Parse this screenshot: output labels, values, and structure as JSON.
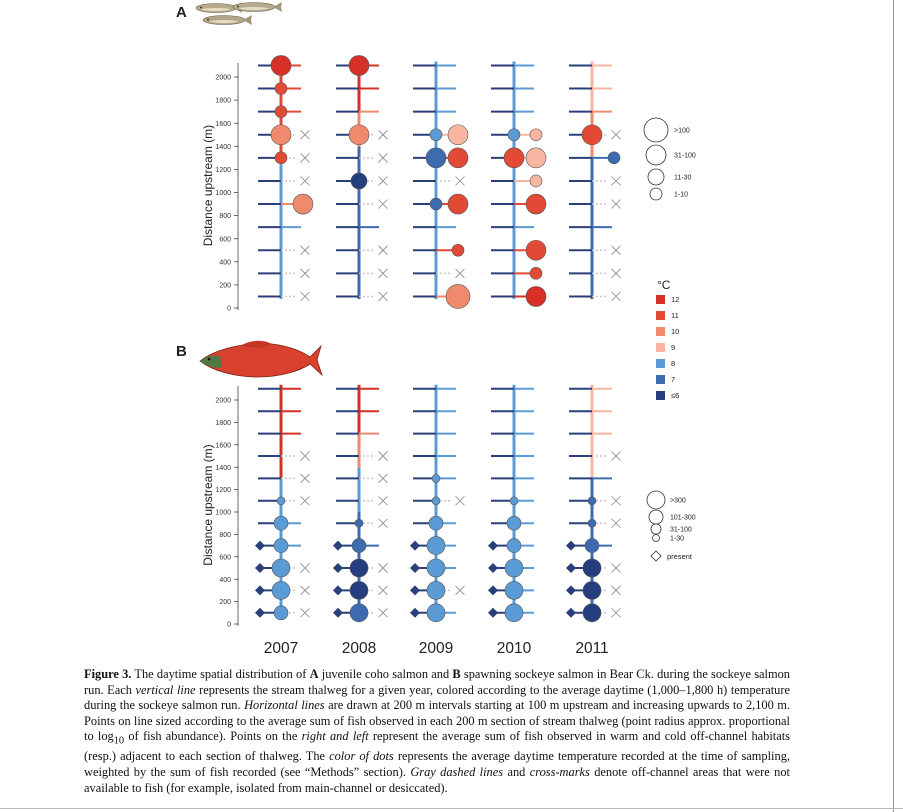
{
  "panels": {
    "a": {
      "label": "A",
      "ylabel": "Distance upstream (m)",
      "yticks": [
        "0",
        "200",
        "400",
        "600",
        "800",
        "1000",
        "1200",
        "1400",
        "1600",
        "1800",
        "2000"
      ]
    },
    "b": {
      "label": "B",
      "ylabel": "Distance upstream (m)",
      "yticks": [
        "0",
        "200",
        "400",
        "600",
        "800",
        "1000",
        "1200",
        "1400",
        "1600",
        "1800",
        "2000"
      ]
    }
  },
  "years": [
    "2007",
    "2008",
    "2009",
    "2010",
    "2011"
  ],
  "legend": {
    "size_a": [
      ">100",
      "31-100",
      "11-30",
      "1-10"
    ],
    "temp_title": "°C",
    "temp_labels": [
      "12",
      "11",
      "10",
      "9",
      "8",
      "7",
      "≤6"
    ],
    "temp_colors": [
      "#d73027",
      "#e24a35",
      "#f08a6d",
      "#f7b5a2",
      "#5b9bd5",
      "#3d6bb0",
      "#253e7e"
    ],
    "size_b": [
      ">300",
      "101-300",
      "31-100",
      "1-30"
    ],
    "present": "present"
  },
  "chart_data": [
    {
      "type": "scatter",
      "panel": "A",
      "ylabel": "Distance upstream (m)",
      "ylim": [
        0,
        2100
      ],
      "x": [
        "2007",
        "2008",
        "2009",
        "2010",
        "2011"
      ],
      "thalweg": [
        {
          "year": "2007",
          "segments": [
            {
              "from": 0,
              "to": 1300,
              "color": "#5b9bd5"
            },
            {
              "from": 1300,
              "to": 2100,
              "color": "#e24a35"
            }
          ]
        },
        {
          "year": "2008",
          "segments": [
            {
              "from": 0,
              "to": 1000,
              "color": "#3d6bb0"
            },
            {
              "from": 1000,
              "to": 1400,
              "color": "#3d6bb0"
            },
            {
              "from": 1400,
              "to": 1700,
              "color": "#f08a6d"
            },
            {
              "from": 1700,
              "to": 2100,
              "color": "#d73027"
            }
          ]
        },
        {
          "year": "2009",
          "segments": [
            {
              "from": 0,
              "to": 2100,
              "color": "#5b9bd5"
            }
          ]
        },
        {
          "year": "2010",
          "segments": [
            {
              "from": 0,
              "to": 2100,
              "color": "#5b9bd5"
            }
          ]
        },
        {
          "year": "2011",
          "segments": [
            {
              "from": 0,
              "to": 1300,
              "color": "#3d6bb0"
            },
            {
              "from": 1300,
              "to": 1700,
              "color": "#f08a6d"
            },
            {
              "from": 1700,
              "to": 2100,
              "color": "#f7b5a2"
            }
          ]
        }
      ],
      "points": [
        {
          "year": "2007",
          "y": 2100,
          "pos": "main",
          "size": "31-100",
          "color": "#d73027"
        },
        {
          "year": "2007",
          "y": 1900,
          "pos": "main",
          "size": "1-10",
          "color": "#e24a35"
        },
        {
          "year": "2007",
          "y": 1700,
          "pos": "main",
          "size": "1-10",
          "color": "#e24a35"
        },
        {
          "year": "2007",
          "y": 1500,
          "pos": "main",
          "size": "31-100",
          "color": "#f08a6d"
        },
        {
          "year": "2007",
          "y": 1300,
          "pos": "main",
          "size": "1-10",
          "color": "#e24a35"
        },
        {
          "year": "2007",
          "y": 900,
          "pos": "right",
          "size": "31-100",
          "color": "#f08a6d"
        },
        {
          "year": "2008",
          "y": 2100,
          "pos": "main",
          "size": "31-100",
          "color": "#d73027"
        },
        {
          "year": "2008",
          "y": 1500,
          "pos": "main",
          "size": "31-100",
          "color": "#f08a6d"
        },
        {
          "year": "2008",
          "y": 1100,
          "pos": "main",
          "size": "11-30",
          "color": "#253e7e"
        },
        {
          "year": "2009",
          "y": 1500,
          "pos": "main",
          "size": "1-10",
          "color": "#5b9bd5"
        },
        {
          "year": "2009",
          "y": 1500,
          "pos": "right",
          "size": "31-100",
          "color": "#f7b5a2"
        },
        {
          "year": "2009",
          "y": 1300,
          "pos": "main",
          "size": "31-100",
          "color": "#3d6bb0"
        },
        {
          "year": "2009",
          "y": 1300,
          "pos": "right",
          "size": "31-100",
          "color": "#e24a35"
        },
        {
          "year": "2009",
          "y": 900,
          "pos": "main",
          "size": "1-10",
          "color": "#3d6bb0"
        },
        {
          "year": "2009",
          "y": 900,
          "pos": "right",
          "size": "31-100",
          "color": "#e24a35"
        },
        {
          "year": "2009",
          "y": 500,
          "pos": "right",
          "size": "1-10",
          "color": "#e24a35"
        },
        {
          "year": "2009",
          "y": 100,
          "pos": "right",
          "size": ">100",
          "color": "#f08a6d"
        },
        {
          "year": "2010",
          "y": 1500,
          "pos": "main",
          "size": "1-10",
          "color": "#5b9bd5"
        },
        {
          "year": "2010",
          "y": 1500,
          "pos": "right",
          "size": "1-10",
          "color": "#f7b5a2"
        },
        {
          "year": "2010",
          "y": 1300,
          "pos": "main",
          "size": "31-100",
          "color": "#e24a35"
        },
        {
          "year": "2010",
          "y": 1300,
          "pos": "right",
          "size": "31-100",
          "color": "#f7b5a2"
        },
        {
          "year": "2010",
          "y": 1100,
          "pos": "right",
          "size": "1-10",
          "color": "#f7b5a2"
        },
        {
          "year": "2010",
          "y": 900,
          "pos": "right",
          "size": "31-100",
          "color": "#e24a35"
        },
        {
          "year": "2010",
          "y": 500,
          "pos": "right",
          "size": "31-100",
          "color": "#e24a35"
        },
        {
          "year": "2010",
          "y": 300,
          "pos": "right",
          "size": "1-10",
          "color": "#e24a35"
        },
        {
          "year": "2010",
          "y": 100,
          "pos": "right",
          "size": "31-100",
          "color": "#d73027"
        },
        {
          "year": "2011",
          "y": 1500,
          "pos": "main",
          "size": "31-100",
          "color": "#e24a35"
        },
        {
          "year": "2011",
          "y": 1300,
          "pos": "right",
          "size": "1-10",
          "color": "#3d6bb0"
        }
      ],
      "offchannel_unavailable": [
        {
          "year": "2007",
          "y": [
            1500,
            1300,
            1100,
            500,
            300,
            100
          ]
        },
        {
          "year": "2008",
          "y": [
            1500,
            1300,
            1100,
            900,
            500,
            300,
            100
          ]
        },
        {
          "year": "2009",
          "y": [
            1100,
            300
          ]
        },
        {
          "year": "2011",
          "y": [
            1500,
            1100,
            900,
            500,
            300,
            100
          ]
        }
      ]
    },
    {
      "type": "scatter",
      "panel": "B",
      "ylabel": "Distance upstream (m)",
      "ylim": [
        0,
        2100
      ],
      "x": [
        "2007",
        "2008",
        "2009",
        "2010",
        "2011"
      ],
      "thalweg": [
        {
          "year": "2007",
          "segments": [
            {
              "from": 0,
              "to": 1300,
              "color": "#5b9bd5"
            },
            {
              "from": 1300,
              "to": 2100,
              "color": "#d73027"
            }
          ]
        },
        {
          "year": "2008",
          "segments": [
            {
              "from": 0,
              "to": 1000,
              "color": "#3d6bb0"
            },
            {
              "from": 1000,
              "to": 1400,
              "color": "#5b9bd5"
            },
            {
              "from": 1400,
              "to": 1700,
              "color": "#f08a6d"
            },
            {
              "from": 1700,
              "to": 2100,
              "color": "#d73027"
            }
          ]
        },
        {
          "year": "2009",
          "segments": [
            {
              "from": 0,
              "to": 2100,
              "color": "#5b9bd5"
            }
          ]
        },
        {
          "year": "2010",
          "segments": [
            {
              "from": 0,
              "to": 2100,
              "color": "#5b9bd5"
            }
          ]
        },
        {
          "year": "2011",
          "segments": [
            {
              "from": 0,
              "to": 1300,
              "color": "#3d6bb0"
            },
            {
              "from": 1300,
              "to": 1700,
              "color": "#f7b5a2"
            },
            {
              "from": 1700,
              "to": 2100,
              "color": "#f7b5a2"
            }
          ]
        }
      ],
      "points": [
        {
          "year": "2007",
          "y": 1100,
          "pos": "main",
          "size": "1-30",
          "color": "#5b9bd5"
        },
        {
          "year": "2007",
          "y": 900,
          "pos": "main",
          "size": "31-100",
          "color": "#5b9bd5"
        },
        {
          "year": "2007",
          "y": 700,
          "pos": "main",
          "size": "31-100",
          "color": "#5b9bd5"
        },
        {
          "year": "2007",
          "y": 500,
          "pos": "main",
          "size": "101-300",
          "color": "#5b9bd5"
        },
        {
          "year": "2007",
          "y": 300,
          "pos": "main",
          "size": "101-300",
          "color": "#5b9bd5"
        },
        {
          "year": "2007",
          "y": 100,
          "pos": "main",
          "size": "31-100",
          "color": "#5b9bd5"
        },
        {
          "year": "2008",
          "y": 900,
          "pos": "main",
          "size": "1-30",
          "color": "#3d6bb0"
        },
        {
          "year": "2008",
          "y": 700,
          "pos": "main",
          "size": "31-100",
          "color": "#3d6bb0"
        },
        {
          "year": "2008",
          "y": 500,
          "pos": "main",
          "size": "101-300",
          "color": "#253e7e"
        },
        {
          "year": "2008",
          "y": 300,
          "pos": "main",
          "size": "101-300",
          "color": "#253e7e"
        },
        {
          "year": "2008",
          "y": 100,
          "pos": "main",
          "size": "101-300",
          "color": "#3d6bb0"
        },
        {
          "year": "2009",
          "y": 1300,
          "pos": "main",
          "size": "1-30",
          "color": "#5b9bd5"
        },
        {
          "year": "2009",
          "y": 1100,
          "pos": "main",
          "size": "1-30",
          "color": "#5b9bd5"
        },
        {
          "year": "2009",
          "y": 900,
          "pos": "main",
          "size": "31-100",
          "color": "#5b9bd5"
        },
        {
          "year": "2009",
          "y": 700,
          "pos": "main",
          "size": "101-300",
          "color": "#5b9bd5"
        },
        {
          "year": "2009",
          "y": 500,
          "pos": "main",
          "size": "101-300",
          "color": "#5b9bd5"
        },
        {
          "year": "2009",
          "y": 300,
          "pos": "main",
          "size": "101-300",
          "color": "#5b9bd5"
        },
        {
          "year": "2009",
          "y": 100,
          "pos": "main",
          "size": "101-300",
          "color": "#5b9bd5"
        },
        {
          "year": "2010",
          "y": 1100,
          "pos": "main",
          "size": "1-30",
          "color": "#5b9bd5"
        },
        {
          "year": "2010",
          "y": 900,
          "pos": "main",
          "size": "31-100",
          "color": "#5b9bd5"
        },
        {
          "year": "2010",
          "y": 700,
          "pos": "main",
          "size": "31-100",
          "color": "#5b9bd5"
        },
        {
          "year": "2010",
          "y": 500,
          "pos": "main",
          "size": "101-300",
          "color": "#5b9bd5"
        },
        {
          "year": "2010",
          "y": 300,
          "pos": "main",
          "size": "101-300",
          "color": "#5b9bd5"
        },
        {
          "year": "2010",
          "y": 100,
          "pos": "main",
          "size": "101-300",
          "color": "#5b9bd5"
        },
        {
          "year": "2011",
          "y": 1100,
          "pos": "main",
          "size": "1-30",
          "color": "#3d6bb0"
        },
        {
          "year": "2011",
          "y": 900,
          "pos": "main",
          "size": "1-30",
          "color": "#3d6bb0"
        },
        {
          "year": "2011",
          "y": 700,
          "pos": "main",
          "size": "31-100",
          "color": "#3d6bb0"
        },
        {
          "year": "2011",
          "y": 500,
          "pos": "main",
          "size": "101-300",
          "color": "#253e7e"
        },
        {
          "year": "2011",
          "y": 300,
          "pos": "main",
          "size": "101-300",
          "color": "#253e7e"
        },
        {
          "year": "2011",
          "y": 100,
          "pos": "main",
          "size": "101-300",
          "color": "#253e7e"
        }
      ],
      "left_present": [
        {
          "year": "2007",
          "y": [
            700,
            500,
            300,
            100
          ]
        },
        {
          "year": "2008",
          "y": [
            700,
            500,
            300,
            100
          ]
        },
        {
          "year": "2009",
          "y": [
            700,
            500,
            300,
            100
          ]
        },
        {
          "year": "2010",
          "y": [
            700,
            500,
            300,
            100
          ]
        },
        {
          "year": "2011",
          "y": [
            700,
            500,
            300,
            100
          ]
        }
      ],
      "offchannel_unavailable": [
        {
          "year": "2007",
          "y": [
            1500,
            1300,
            1100,
            500,
            300,
            100
          ]
        },
        {
          "year": "2008",
          "y": [
            1500,
            1300,
            1100,
            900,
            500,
            300,
            100
          ]
        },
        {
          "year": "2009",
          "y": [
            1100,
            300
          ]
        },
        {
          "year": "2011",
          "y": [
            1500,
            1100,
            900,
            500,
            300,
            100
          ]
        }
      ]
    }
  ],
  "caption": {
    "label": "Figure 3.",
    "parts": [
      {
        "t": " The daytime spatial distribution of ",
        "s": "n"
      },
      {
        "t": "A",
        "s": "b"
      },
      {
        "t": " juvenile coho salmon and ",
        "s": "n"
      },
      {
        "t": "B",
        "s": "b"
      },
      {
        "t": " spawning sockeye salmon in Bear Ck. during the sockeye salmon run. Each ",
        "s": "n"
      },
      {
        "t": "vertical line",
        "s": "i"
      },
      {
        "t": " represents the stream thalweg for a given year, colored according to the average daytime (1,000–1,800 h) temperature during the sockeye salmon run. ",
        "s": "n"
      },
      {
        "t": "Horizontal lines",
        "s": "i"
      },
      {
        "t": " are drawn at 200 m intervals starting at 100 m upstream and increasing upwards to 2,100 m. Points on line sized according to the average sum of fish observed in each 200 m section of stream thalweg (point radius approx. proportional to log",
        "s": "n"
      },
      {
        "t": "10",
        "s": "sub"
      },
      {
        "t": " of fish abundance). Points on the ",
        "s": "n"
      },
      {
        "t": "right and left",
        "s": "i"
      },
      {
        "t": " represent the average sum of fish observed in warm and cold off-channel habitats (resp.) adjacent to each section of thalweg. The ",
        "s": "n"
      },
      {
        "t": "color of dots",
        "s": "i"
      },
      {
        "t": " represents the average daytime temperature recorded at the time of sampling, weighted by the sum of fish recorded (see “Methods” section). ",
        "s": "n"
      },
      {
        "t": "Gray dashed lines",
        "s": "i"
      },
      {
        "t": " and ",
        "s": "n"
      },
      {
        "t": "cross-marks",
        "s": "i"
      },
      {
        "t": " denote off-channel areas that were not available to fish (for example, isolated from main-channel or desiccated).",
        "s": "n"
      }
    ]
  }
}
